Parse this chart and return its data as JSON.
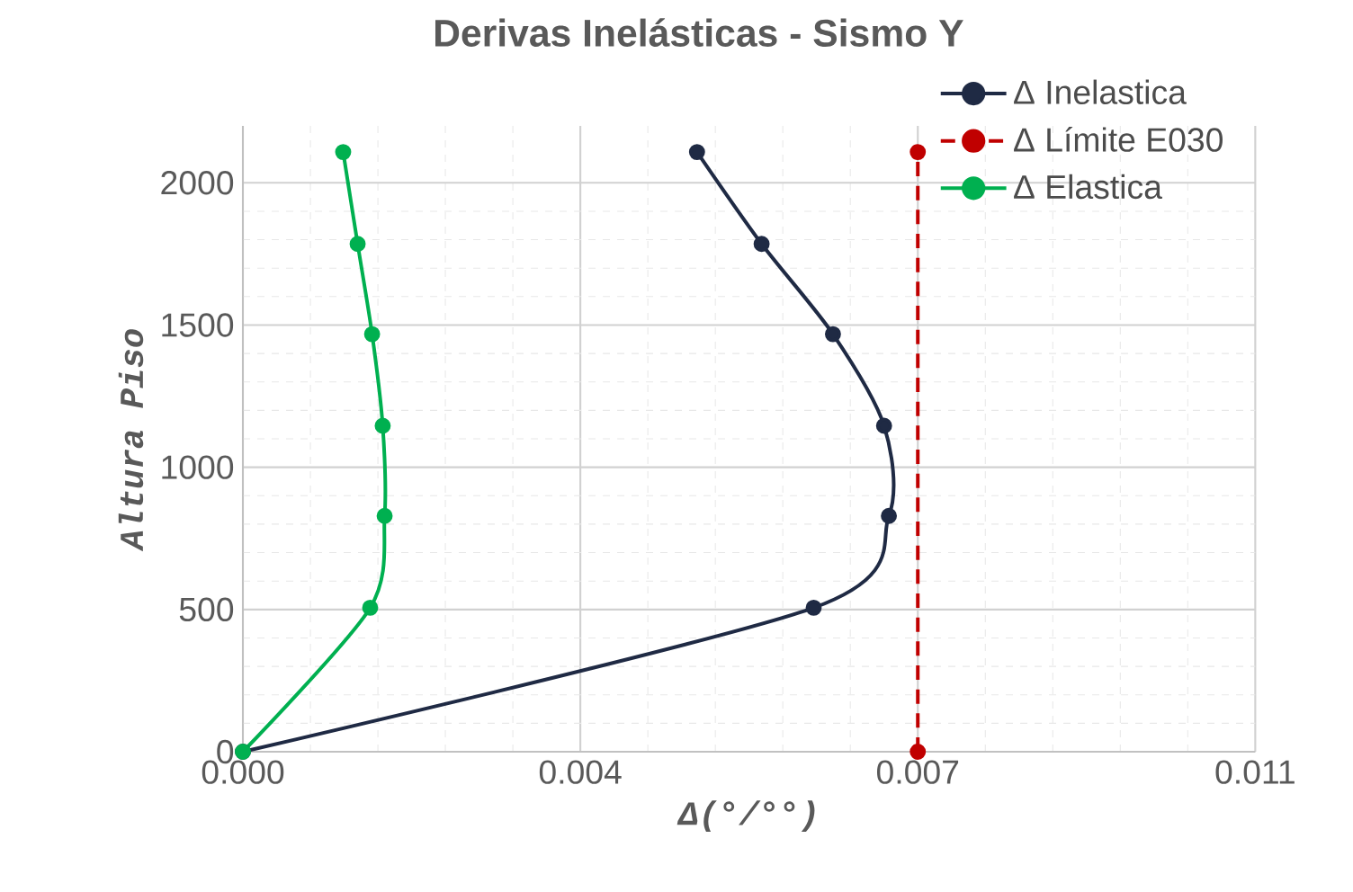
{
  "chart_data": {
    "type": "line",
    "title": "Derivas Inelásticas - Sismo Y",
    "xlabel": "Δ(°/°°)",
    "ylabel": "Altura Piso",
    "xlim": [
      0,
      0.0105
    ],
    "xticks": [
      {
        "value": 0,
        "label": "0.000"
      },
      {
        "value": 0.0035,
        "label": "0.004"
      },
      {
        "value": 0.007,
        "label": "0.007"
      },
      {
        "value": 0.0105,
        "label": "0.011"
      }
    ],
    "ylim": [
      0,
      2200
    ],
    "yticks": [
      0,
      500,
      1000,
      1500,
      2000
    ],
    "grid": true,
    "legend": "top right",
    "marker": "circle",
    "series": [
      {
        "name": "Δ Inelastica",
        "color": "#1f2a44",
        "x": [
          0,
          0.00592,
          0.0067,
          0.00665,
          0.00612,
          0.00538,
          0.00471
        ],
        "values": [
          0,
          506,
          829,
          1146,
          1468,
          1785,
          2108
        ]
      },
      {
        "name": "Δ Límite E030",
        "color": "#c00000",
        "line_style": "dashed",
        "x": [
          0.007,
          0.007
        ],
        "values": [
          0,
          2108
        ]
      },
      {
        "name": "Δ Elastica",
        "color": "#00b050",
        "x": [
          0,
          0.00132,
          0.00147,
          0.00145,
          0.00134,
          0.00119,
          0.00104
        ],
        "values": [
          0,
          506,
          829,
          1146,
          1468,
          1785,
          2108
        ]
      }
    ]
  }
}
